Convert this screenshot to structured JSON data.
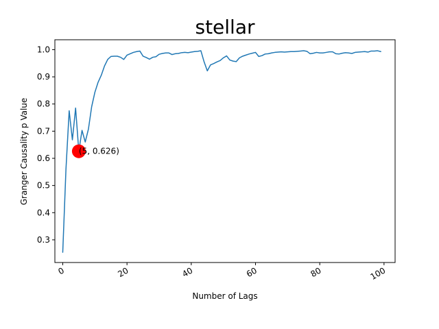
{
  "chart_data": {
    "type": "line",
    "title": "stellar",
    "xlabel": "Number of Lags",
    "ylabel": "Granger Causality p Value",
    "xlim": [
      -2.45,
      103.45
    ],
    "ylim": [
      0.2165,
      1.0365
    ],
    "x_ticks": [
      0,
      20,
      40,
      60,
      80,
      100
    ],
    "x_tick_labels": [
      "0",
      "20",
      "40",
      "60",
      "80",
      "100"
    ],
    "y_ticks": [
      0.3,
      0.4,
      0.5,
      0.6,
      0.7,
      0.8,
      0.9,
      1.0
    ],
    "y_tick_labels": [
      "0.3",
      "0.4",
      "0.5",
      "0.6",
      "0.7",
      "0.8",
      "0.9",
      "1.0"
    ],
    "x_tick_rotation": 30,
    "grid": false,
    "legend": false,
    "series": [
      {
        "color": "#1f77b4",
        "x": [
          0,
          1,
          2,
          3,
          4,
          5,
          6,
          7,
          8,
          9,
          10,
          11,
          12,
          13,
          14,
          15,
          16,
          17,
          18,
          19,
          20,
          21,
          22,
          23,
          24,
          25,
          26,
          27,
          28,
          29,
          30,
          31,
          32,
          33,
          34,
          35,
          36,
          37,
          38,
          39,
          40,
          41,
          42,
          43,
          44,
          45,
          46,
          47,
          48,
          49,
          50,
          51,
          52,
          53,
          54,
          55,
          56,
          57,
          58,
          59,
          60,
          61,
          62,
          63,
          64,
          65,
          66,
          67,
          68,
          69,
          70,
          71,
          72,
          73,
          74,
          75,
          76,
          77,
          78,
          79,
          80,
          81,
          82,
          83,
          84,
          85,
          86,
          87,
          88,
          89,
          90,
          91,
          92,
          93,
          94,
          95,
          96,
          97,
          98,
          99
        ],
        "y": [
          0.254,
          0.56,
          0.775,
          0.668,
          0.785,
          0.626,
          0.703,
          0.66,
          0.708,
          0.79,
          0.843,
          0.88,
          0.906,
          0.94,
          0.964,
          0.975,
          0.976,
          0.976,
          0.972,
          0.964,
          0.98,
          0.985,
          0.99,
          0.993,
          0.995,
          0.976,
          0.971,
          0.965,
          0.972,
          0.974,
          0.983,
          0.986,
          0.988,
          0.988,
          0.982,
          0.985,
          0.986,
          0.989,
          0.99,
          0.989,
          0.991,
          0.993,
          0.994,
          0.996,
          0.955,
          0.922,
          0.944,
          0.949,
          0.955,
          0.96,
          0.97,
          0.977,
          0.962,
          0.958,
          0.956,
          0.97,
          0.976,
          0.98,
          0.984,
          0.987,
          0.99,
          0.975,
          0.978,
          0.984,
          0.985,
          0.988,
          0.99,
          0.991,
          0.992,
          0.991,
          0.992,
          0.993,
          0.993,
          0.994,
          0.995,
          0.996,
          0.994,
          0.985,
          0.987,
          0.99,
          0.988,
          0.988,
          0.99,
          0.992,
          0.992,
          0.985,
          0.984,
          0.987,
          0.989,
          0.988,
          0.986,
          0.99,
          0.991,
          0.992,
          0.993,
          0.991,
          0.995,
          0.995,
          0.996,
          0.993
        ]
      }
    ],
    "highlight_point": {
      "x": 5,
      "y": 0.626,
      "label": "(5, 0.626)",
      "color": "#ff0000"
    }
  }
}
